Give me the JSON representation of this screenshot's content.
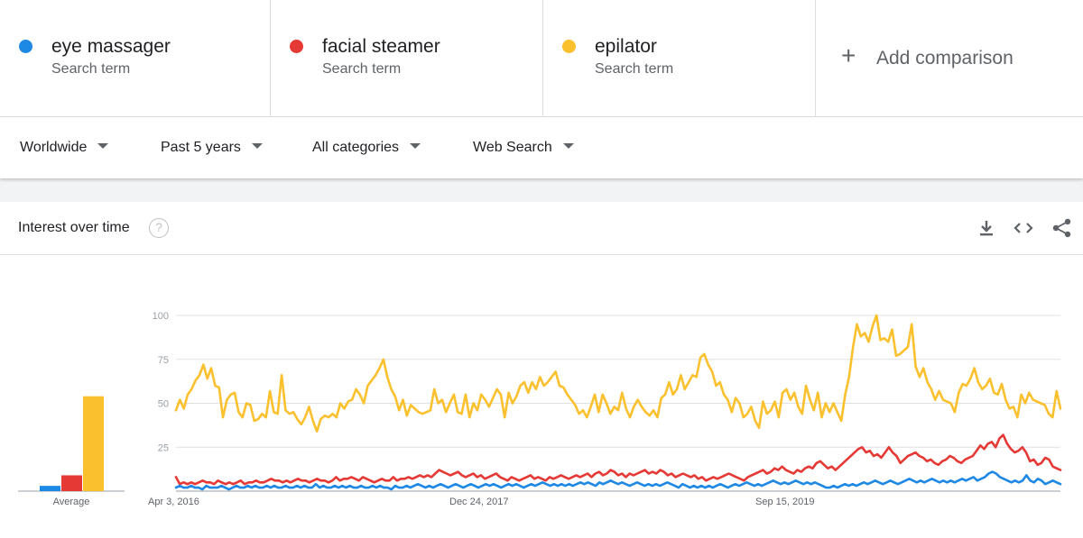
{
  "search_terms": [
    {
      "name": "eye massager",
      "subtitle": "Search term",
      "color": "#1e88e5"
    },
    {
      "name": "facial steamer",
      "subtitle": "Search term",
      "color": "#e53935"
    },
    {
      "name": "epilator",
      "subtitle": "Search term",
      "color": "#fbc02d"
    }
  ],
  "add_comparison": {
    "icon": "plus-icon",
    "label": "Add comparison"
  },
  "filters": [
    {
      "label": "Worldwide"
    },
    {
      "label": "Past 5 years"
    },
    {
      "label": "All categories"
    },
    {
      "label": "Web Search"
    }
  ],
  "card": {
    "title": "Interest over time",
    "help_icon": "help-circle-icon",
    "toolbar": [
      "download-icon",
      "embed-code-icon",
      "share-icon"
    ]
  },
  "chart_data": {
    "type": "line",
    "title": "Interest over time",
    "xlabel": "",
    "ylabel": "",
    "ylim": [
      0,
      100
    ],
    "yticks": [
      25,
      50,
      75,
      100
    ],
    "grid": true,
    "x_tick_labels": [
      "Apr 3, 2016",
      "Dec 24, 2017",
      "Sep 15, 2019"
    ],
    "average": {
      "label": "Average",
      "values": [
        {
          "name": "eye massager",
          "value": 3
        },
        {
          "name": "facial steamer",
          "value": 9
        },
        {
          "name": "epilator",
          "value": 54
        }
      ]
    },
    "series": [
      {
        "name": "epilator",
        "color": "#fbc02d",
        "values": [
          46,
          52,
          47,
          55,
          58,
          63,
          66,
          72,
          64,
          70,
          60,
          59,
          42,
          52,
          55,
          56,
          45,
          42,
          50,
          49,
          40,
          41,
          44,
          42,
          57,
          45,
          44,
          66,
          46,
          44,
          45,
          41,
          38,
          42,
          48,
          40,
          34,
          41,
          43,
          42,
          44,
          42,
          50,
          47,
          51,
          52,
          58,
          55,
          50,
          60,
          63,
          66,
          70,
          75,
          65,
          58,
          54,
          46,
          52,
          43,
          49,
          47,
          45,
          44,
          45,
          46,
          58,
          50,
          52,
          45,
          50,
          55,
          45,
          44,
          55,
          42,
          50,
          46,
          55,
          52,
          48,
          53,
          58,
          55,
          42,
          56,
          50,
          54,
          60,
          62,
          56,
          62,
          58,
          65,
          60,
          62,
          65,
          68,
          60,
          59,
          55,
          52,
          49,
          44,
          46,
          42,
          48,
          55,
          45,
          55,
          50,
          44,
          48,
          46,
          56,
          47,
          42,
          48,
          52,
          48,
          45,
          43,
          46,
          42,
          53,
          55,
          62,
          55,
          58,
          66,
          58,
          62,
          66,
          65,
          76,
          78,
          72,
          68,
          60,
          62,
          55,
          52,
          45,
          53,
          50,
          42,
          44,
          48,
          40,
          36,
          51,
          44,
          46,
          51,
          42,
          56,
          58,
          52,
          56,
          48,
          44,
          60,
          52,
          46,
          56,
          42,
          50,
          45,
          50,
          45,
          40,
          55,
          65,
          82,
          95,
          88,
          90,
          85,
          94,
          100,
          86,
          87,
          85,
          92,
          77,
          78,
          80,
          82,
          95,
          71,
          65,
          70,
          62,
          58,
          52,
          57,
          52,
          51,
          50,
          45,
          56,
          61,
          60,
          64,
          70,
          62,
          58,
          60,
          64,
          56,
          55,
          61,
          52,
          47,
          48,
          42,
          55,
          50,
          56,
          52,
          51,
          50,
          49,
          44,
          42,
          57,
          47
        ]
      },
      {
        "name": "facial steamer",
        "color": "#e53935",
        "values": [
          8,
          4,
          5,
          4,
          5,
          4,
          5,
          6,
          5,
          5,
          4,
          6,
          5,
          4,
          5,
          4,
          5,
          6,
          4,
          5,
          5,
          6,
          5,
          5,
          6,
          7,
          6,
          6,
          5,
          6,
          5,
          6,
          7,
          6,
          6,
          5,
          6,
          7,
          6,
          6,
          5,
          6,
          8,
          6,
          7,
          7,
          8,
          7,
          6,
          8,
          7,
          6,
          5,
          6,
          7,
          6,
          6,
          8,
          6,
          7,
          7,
          8,
          7,
          8,
          9,
          8,
          9,
          8,
          10,
          12,
          11,
          10,
          9,
          10,
          11,
          9,
          8,
          9,
          10,
          8,
          9,
          7,
          8,
          9,
          10,
          8,
          7,
          6,
          8,
          7,
          6,
          7,
          8,
          9,
          7,
          8,
          7,
          6,
          8,
          7,
          8,
          9,
          8,
          7,
          8,
          9,
          8,
          9,
          10,
          8,
          10,
          11,
          9,
          10,
          12,
          11,
          9,
          10,
          8,
          10,
          9,
          10,
          11,
          12,
          10,
          11,
          10,
          12,
          11,
          9,
          10,
          8,
          9,
          10,
          9,
          8,
          9,
          7,
          8,
          6,
          7,
          8,
          7,
          8,
          9,
          10,
          9,
          8,
          7,
          6,
          8,
          9,
          10,
          11,
          12,
          10,
          11,
          13,
          12,
          14,
          12,
          11,
          10,
          12,
          11,
          13,
          14,
          13,
          16,
          17,
          15,
          13,
          14,
          12,
          14,
          16,
          18,
          20,
          22,
          24,
          25,
          22,
          23,
          20,
          21,
          19,
          22,
          25,
          22,
          20,
          16,
          18,
          20,
          21,
          22,
          20,
          19,
          17,
          18,
          16,
          15,
          17,
          18,
          20,
          19,
          17,
          16,
          18,
          19,
          20,
          23,
          26,
          24,
          27,
          28,
          25,
          30,
          32,
          27,
          24,
          22,
          23,
          25,
          22,
          17,
          18,
          15,
          16,
          19,
          18,
          14,
          13,
          12
        ]
      },
      {
        "name": "eye massager",
        "color": "#1e88e5",
        "values": [
          2,
          3,
          2,
          2,
          3,
          2,
          2,
          1,
          3,
          2,
          2,
          2,
          3,
          2,
          1,
          2,
          3,
          2,
          2,
          3,
          2,
          3,
          2,
          2,
          3,
          2,
          3,
          2,
          2,
          3,
          2,
          2,
          3,
          2,
          3,
          2,
          2,
          4,
          2,
          3,
          2,
          2,
          3,
          2,
          3,
          2,
          3,
          2,
          2,
          3,
          2,
          2,
          3,
          2,
          3,
          2,
          2,
          1,
          3,
          2,
          2,
          3,
          2,
          3,
          4,
          3,
          2,
          3,
          2,
          3,
          4,
          3,
          2,
          3,
          4,
          3,
          2,
          3,
          4,
          3,
          2,
          3,
          4,
          3,
          4,
          3,
          2,
          3,
          4,
          3,
          4,
          3,
          2,
          3,
          4,
          3,
          4,
          5,
          4,
          3,
          4,
          3,
          4,
          3,
          4,
          3,
          4,
          5,
          4,
          5,
          4,
          3,
          5,
          4,
          5,
          6,
          5,
          4,
          5,
          4,
          3,
          4,
          5,
          4,
          3,
          4,
          3,
          4,
          3,
          4,
          5,
          4,
          3,
          2,
          4,
          3,
          2,
          3,
          2,
          3,
          2,
          3,
          2,
          3,
          4,
          3,
          2,
          3,
          4,
          3,
          4,
          5,
          4,
          3,
          4,
          3,
          4,
          5,
          6,
          5,
          4,
          5,
          4,
          5,
          6,
          5,
          4,
          5,
          4,
          5,
          4,
          3,
          2,
          2,
          3,
          2,
          3,
          4,
          3,
          4,
          3,
          4,
          5,
          4,
          5,
          6,
          5,
          4,
          5,
          6,
          5,
          4,
          5,
          6,
          7,
          6,
          5,
          6,
          5,
          6,
          7,
          6,
          5,
          6,
          5,
          6,
          5,
          6,
          7,
          6,
          7,
          8,
          6,
          7,
          8,
          10,
          11,
          10,
          8,
          7,
          6,
          5,
          6,
          5,
          6,
          9,
          6,
          5,
          7,
          6,
          4,
          5,
          6,
          5,
          4
        ]
      }
    ]
  }
}
